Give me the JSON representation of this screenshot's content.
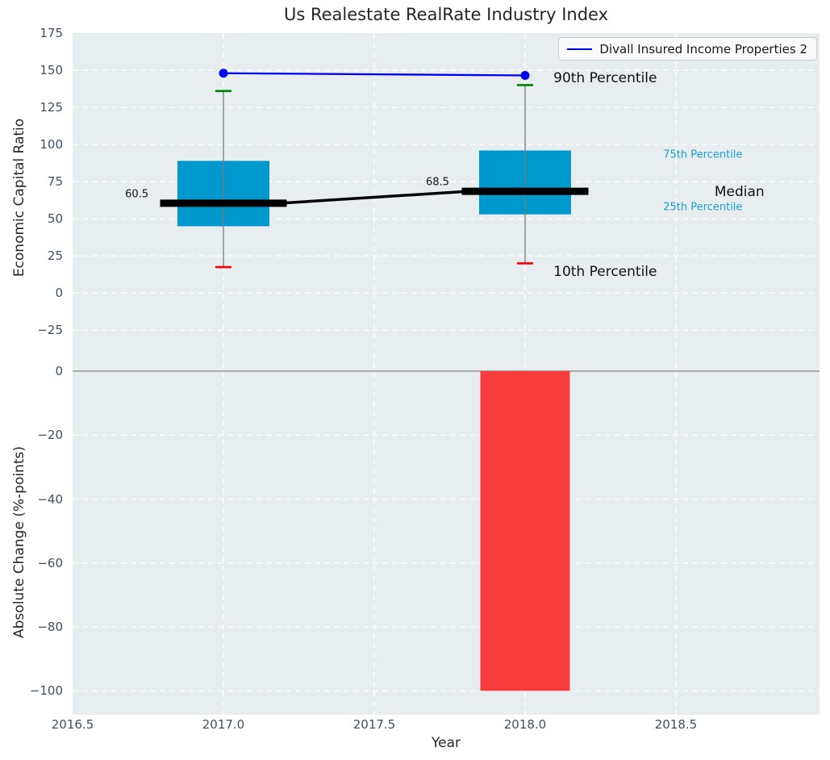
{
  "title": "Us Realestate RealRate Industry Index",
  "legend": {
    "series_label": "Divall Insured Income Properties 2"
  },
  "chart_data": {
    "type": "boxplot",
    "title": "Us Realestate RealRate Industry Index",
    "xlabel": "Year",
    "xlim": [
      2016.5,
      2018.976
    ],
    "x_ticks": [
      {
        "v": 2016.5,
        "label": "2016.5"
      },
      {
        "v": 2017.0,
        "label": "2017.0"
      },
      {
        "v": 2017.5,
        "label": "2017.5"
      },
      {
        "v": 2018.0,
        "label": "2018.0"
      },
      {
        "v": 2018.5,
        "label": "2018.5"
      }
    ],
    "panels": [
      {
        "id": "top",
        "ylabel": "Economic Capital Ratio",
        "ylim": [
          -52.5,
          175
        ],
        "y_ticks": [
          {
            "v": 175,
            "label": "175"
          },
          {
            "v": 150,
            "label": "150"
          },
          {
            "v": 125,
            "label": "125"
          },
          {
            "v": 100,
            "label": "100"
          },
          {
            "v": 75,
            "label": "75"
          },
          {
            "v": 50,
            "label": "50"
          },
          {
            "v": 25,
            "label": "25"
          },
          {
            "v": 0,
            "label": "0"
          },
          {
            "v": -25,
            "label": "−25"
          }
        ],
        "boxes": [
          {
            "x": 2017,
            "p10": 17.5,
            "p25": 45,
            "median": 60.5,
            "p75": 89,
            "p90": 136
          },
          {
            "x": 2018,
            "p10": 20,
            "p25": 53,
            "median": 68.5,
            "p75": 96,
            "p90": 140
          }
        ],
        "line_series": {
          "name": "Divall Insured Income Properties 2",
          "points": [
            [
              2017,
              148
            ],
            [
              2018,
              146.5
            ]
          ]
        }
      },
      {
        "id": "bottom",
        "ylabel": "Absolute Change (%-points)",
        "ylim": [
          -107.5,
          0
        ],
        "y_ticks": [
          {
            "v": 0,
            "label": "0"
          },
          {
            "v": -20,
            "label": "−20"
          },
          {
            "v": -40,
            "label": "−40"
          },
          {
            "v": -60,
            "label": "−60"
          },
          {
            "v": -80,
            "label": "−80"
          },
          {
            "v": -100,
            "label": "−100"
          }
        ],
        "bars": [
          {
            "x": 2018,
            "value": -100
          }
        ]
      }
    ],
    "annotations": [
      {
        "text": "90th Percentile",
        "x": 2018.094,
        "y": 144.6,
        "color": "#111111",
        "size": 17
      },
      {
        "text": "10th Percentile",
        "x": 2018.094,
        "y": 14.3,
        "color": "#111111",
        "size": 17
      },
      {
        "text": "75th Percentile",
        "x": 2018.458,
        "y": 93.0,
        "color": "#1a9ed0",
        "size": 13
      },
      {
        "text": "Median",
        "x": 2018.628,
        "y": 68.0,
        "color": "#111111",
        "size": 17
      },
      {
        "text": "25th Percentile",
        "x": 2018.458,
        "y": 57.7,
        "color": "#1a9ed0",
        "size": 13
      },
      {
        "text": "60.5",
        "x": 2016.674,
        "y": 66.4,
        "color": "#111111",
        "size": 13
      },
      {
        "text": "68.5",
        "x": 2017.671,
        "y": 74.3,
        "color": "#111111",
        "size": 13
      }
    ],
    "colors": {
      "plot_bg": "#e8edf0",
      "grid": "#ffffff",
      "box": "#0099cd",
      "whisker": "#7a7a7a",
      "cap_90th": "#008000",
      "cap_10th": "#ff0000",
      "median": "#000000",
      "series": "#0000f0",
      "bar_negative": "#f93c3c",
      "zero_line": "#a8a8a8",
      "tick": "#3d5064",
      "label": "#262626"
    }
  }
}
